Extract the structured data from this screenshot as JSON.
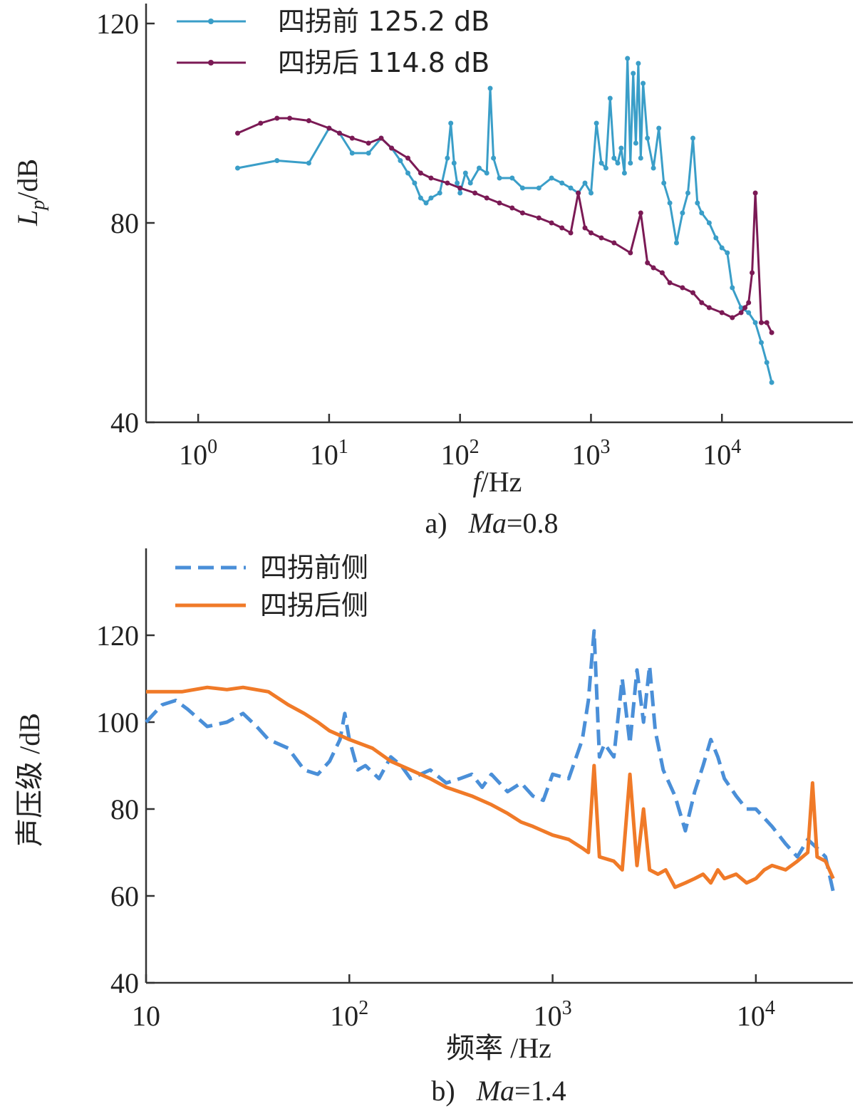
{
  "chart_data": [
    {
      "type": "line",
      "panel": "a",
      "caption_prefix": "a)",
      "caption_var": "Ma",
      "caption_rest": "=0.8",
      "xlabel_var": "f",
      "xlabel_unit": "/Hz",
      "ylabel_var": "L",
      "ylabel_sub": "p",
      "ylabel_unit": "/dB",
      "xscale": "log",
      "xlim": [
        0.4,
        100000
      ],
      "ylim": [
        40,
        124
      ],
      "xticks": [
        1,
        10,
        100,
        1000,
        10000
      ],
      "xtick_labels": [
        "10",
        "10",
        "10",
        "10",
        "10"
      ],
      "xtick_exps": [
        "0",
        "1",
        "2",
        "3",
        "4"
      ],
      "yticks": [
        40,
        80,
        120
      ],
      "ytick_labels": [
        "40",
        "80",
        "120"
      ],
      "grid": false,
      "legend_position": "top-left",
      "series": [
        {
          "name": "四拐前 125.2 dB",
          "color": "#3a9ec8",
          "style": "solid-marker",
          "x": [
            2,
            4,
            7,
            10,
            12,
            15,
            20,
            25,
            30,
            35,
            40,
            45,
            50,
            55,
            60,
            70,
            80,
            85,
            90,
            95,
            100,
            110,
            120,
            140,
            160,
            170,
            180,
            200,
            250,
            300,
            400,
            500,
            600,
            700,
            800,
            900,
            1000,
            1100,
            1200,
            1300,
            1400,
            1500,
            1600,
            1700,
            1800,
            1900,
            2000,
            2100,
            2200,
            2300,
            2400,
            2500,
            2700,
            3000,
            3300,
            3600,
            4000,
            4500,
            5000,
            5500,
            6000,
            6500,
            7000,
            8000,
            9000,
            10000,
            11000,
            12000,
            14000,
            16000,
            18000,
            20000,
            22000,
            24000
          ],
          "y": [
            91,
            92.5,
            92,
            99,
            98,
            94,
            94,
            97,
            95,
            92.5,
            90,
            88,
            85,
            84,
            85,
            86,
            93,
            100,
            92,
            88,
            86,
            90,
            88,
            91,
            90,
            107,
            93,
            89,
            89,
            87,
            87,
            89,
            88,
            87,
            86,
            88,
            86,
            100,
            92,
            91,
            105,
            93,
            92,
            95,
            90,
            113,
            92,
            110,
            96,
            112,
            93,
            108,
            97,
            91,
            99,
            88,
            84,
            76,
            82,
            86,
            97,
            84,
            82,
            80,
            77,
            75,
            74,
            67,
            63,
            62,
            60,
            56,
            52,
            48
          ]
        },
        {
          "name": "四拐后 114.8 dB",
          "color": "#7b1a55",
          "style": "solid-marker",
          "x": [
            2,
            3,
            4,
            5,
            7,
            10,
            12,
            15,
            20,
            25,
            30,
            40,
            50,
            60,
            80,
            100,
            130,
            160,
            200,
            250,
            300,
            400,
            500,
            600,
            700,
            800,
            900,
            1000,
            1200,
            1500,
            2000,
            2400,
            2700,
            3000,
            3500,
            4000,
            5000,
            6000,
            7000,
            8000,
            10000,
            12000,
            14000,
            15000,
            16000,
            17000,
            18000,
            20000,
            22000,
            24000
          ],
          "y": [
            98,
            100,
            101,
            101,
            100.5,
            99,
            98,
            97,
            96,
            97,
            95,
            93,
            90,
            89,
            88,
            87,
            86,
            85,
            84,
            83,
            82,
            81,
            80,
            79,
            78,
            86,
            79,
            78,
            77,
            76,
            74,
            82,
            72,
            71,
            70,
            68,
            67,
            66,
            64,
            63,
            62,
            61,
            62,
            63,
            64,
            70,
            86,
            60,
            60,
            58
          ]
        }
      ]
    },
    {
      "type": "line",
      "panel": "b",
      "caption_prefix": "b)",
      "caption_var": "Ma",
      "caption_rest": "=1.4",
      "xlabel": "频率 /Hz",
      "ylabel": "声压级 /dB",
      "xscale": "log",
      "xlim": [
        10,
        30000
      ],
      "ylim": [
        40,
        140
      ],
      "xticks": [
        10,
        100,
        1000,
        10000
      ],
      "xtick_labels": [
        "10",
        "10",
        "10",
        "10"
      ],
      "xtick_exps": [
        "",
        "2",
        "3",
        "4"
      ],
      "yticks": [
        40,
        60,
        80,
        100,
        120
      ],
      "ytick_labels": [
        "40",
        "60",
        "80",
        "100",
        "120"
      ],
      "grid": false,
      "legend_position": "top-left",
      "series": [
        {
          "name": "四拐前侧",
          "color": "#4a8fd8",
          "style": "dashed",
          "x": [
            10,
            12,
            14,
            16,
            20,
            25,
            30,
            35,
            40,
            50,
            60,
            70,
            80,
            90,
            95,
            100,
            110,
            120,
            140,
            160,
            180,
            200,
            250,
            300,
            350,
            400,
            450,
            500,
            600,
            700,
            800,
            900,
            1000,
            1200,
            1400,
            1500,
            1600,
            1700,
            1800,
            2000,
            2200,
            2400,
            2600,
            2800,
            3000,
            3200,
            3500,
            4000,
            4500,
            5000,
            5500,
            6000,
            6500,
            7000,
            8000,
            9000,
            10000,
            12000,
            14000,
            16000,
            18000,
            20000,
            22000,
            24000
          ],
          "y": [
            100,
            104,
            105,
            103,
            99,
            100,
            102,
            99,
            96,
            94,
            89,
            88,
            91,
            96,
            102,
            96,
            89,
            90,
            87,
            92,
            90,
            87,
            89,
            86,
            87,
            88,
            85,
            88,
            84,
            86,
            83,
            82,
            88,
            87,
            96,
            105,
            121,
            92,
            95,
            92,
            110,
            95,
            112,
            100,
            113,
            98,
            89,
            83,
            75,
            84,
            90,
            96,
            92,
            87,
            83,
            80,
            80,
            76,
            72,
            69,
            73,
            71,
            69,
            61
          ]
        },
        {
          "name": "四拐后侧",
          "color": "#f07a28",
          "style": "solid",
          "x": [
            10,
            12,
            15,
            20,
            25,
            30,
            40,
            50,
            60,
            70,
            80,
            100,
            130,
            160,
            200,
            250,
            300,
            400,
            500,
            600,
            700,
            800,
            1000,
            1200,
            1400,
            1500,
            1600,
            1700,
            2000,
            2200,
            2400,
            2600,
            2800,
            3000,
            3300,
            3600,
            4000,
            4500,
            5000,
            5500,
            6000,
            6500,
            7000,
            8000,
            9000,
            10000,
            11000,
            12000,
            14000,
            16000,
            18000,
            19000,
            20000,
            22000,
            24000
          ],
          "y": [
            107,
            107,
            107,
            108,
            107.5,
            108,
            107,
            104,
            102,
            100,
            98,
            96,
            94,
            91,
            89,
            87,
            85,
            83,
            81,
            79,
            77,
            76,
            74,
            73,
            71,
            70,
            90,
            69,
            68,
            66,
            88,
            67,
            80,
            66,
            65,
            66,
            62,
            63,
            64,
            65,
            63,
            66,
            64,
            65,
            63,
            64,
            66,
            67,
            66,
            68,
            70,
            86,
            69,
            68,
            64
          ]
        }
      ]
    }
  ]
}
